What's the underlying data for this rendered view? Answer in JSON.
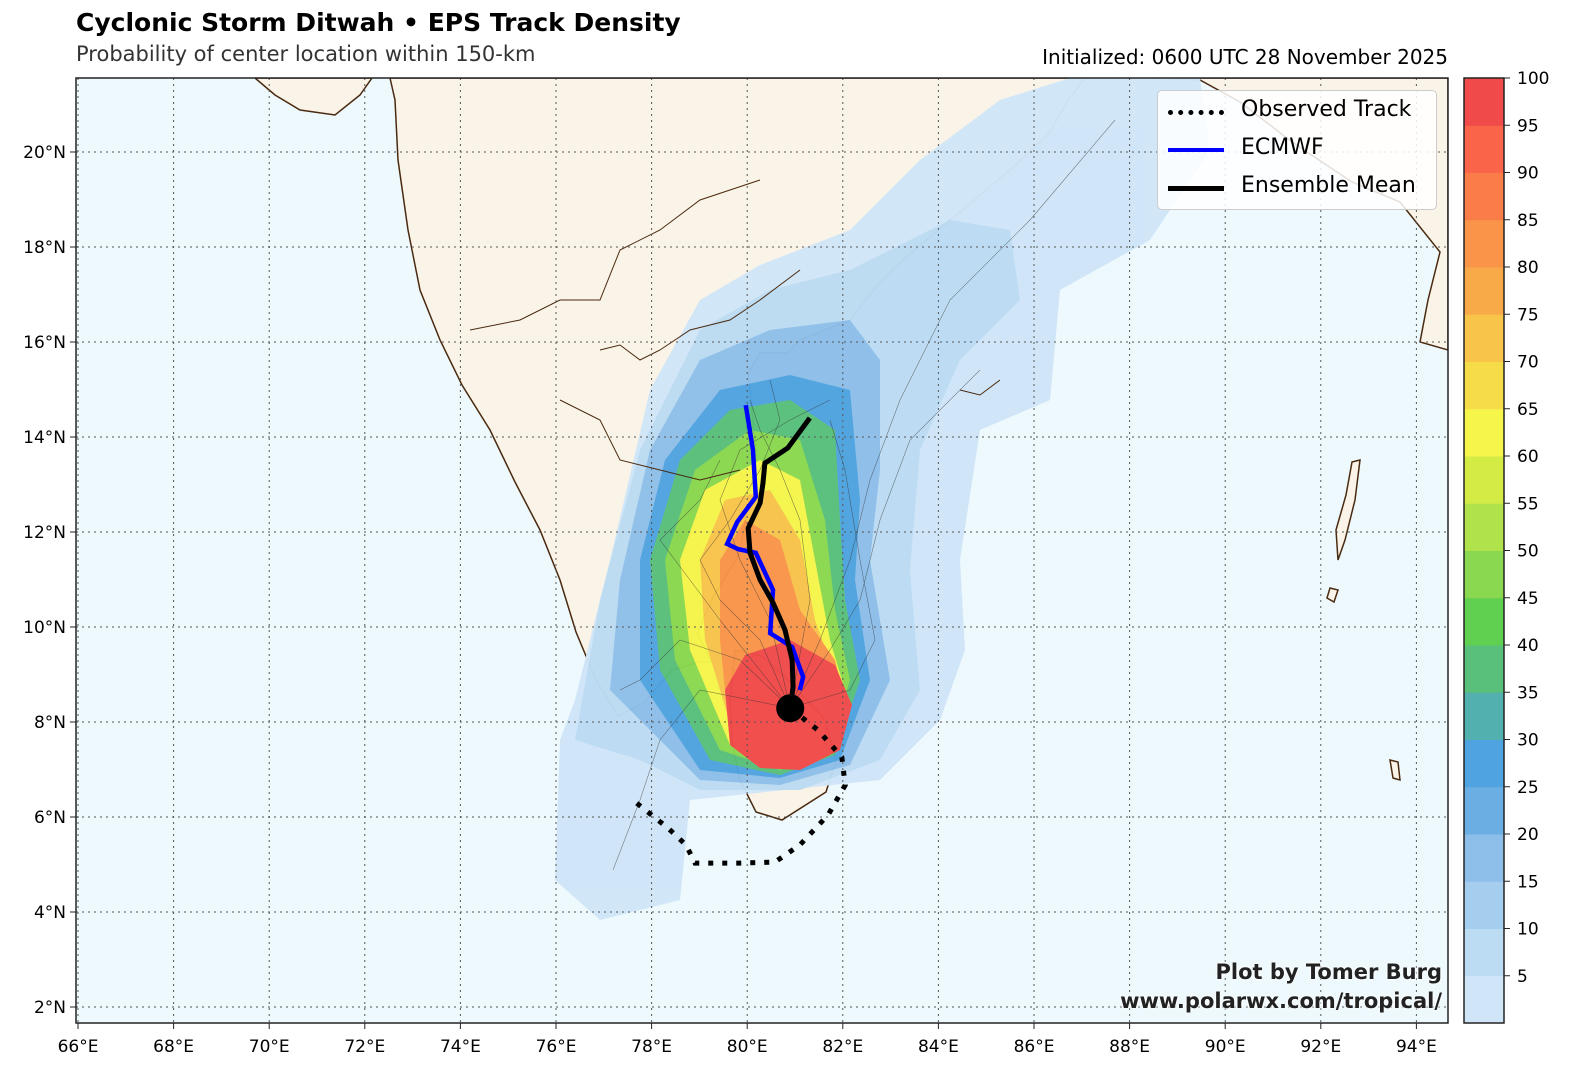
{
  "header": {
    "title": "Cyclonic Storm Ditwah • EPS Track Density",
    "subtitle": "Probability of center location within 150-km",
    "initialized": "Initialized: 0600 UTC 28 November 2025"
  },
  "legend": {
    "items": [
      {
        "label": "Observed Track",
        "style": "dotted",
        "color": "#000000"
      },
      {
        "label": "ECMWF",
        "style": "solid",
        "color": "#0000ff"
      },
      {
        "label": "Ensemble Mean",
        "style": "solid",
        "color": "#000000"
      }
    ]
  },
  "credits": {
    "line1": "Plot by Tomer Burg",
    "line2": "www.polarwx.com/tropical/"
  },
  "chart_data": {
    "type": "map-density",
    "lon_range": [
      66,
      94.6
    ],
    "lat_range": [
      1.7,
      21.6
    ],
    "lon_ticks": [
      "66°E",
      "68°E",
      "70°E",
      "72°E",
      "74°E",
      "76°E",
      "78°E",
      "80°E",
      "82°E",
      "84°E",
      "86°E",
      "88°E",
      "90°E",
      "92°E",
      "94°E"
    ],
    "lon_values": [
      66,
      68,
      70,
      72,
      74,
      76,
      78,
      80,
      82,
      84,
      86,
      88,
      90,
      92,
      94
    ],
    "lat_ticks": [
      "2°N",
      "4°N",
      "6°N",
      "8°N",
      "10°N",
      "12°N",
      "14°N",
      "16°N",
      "18°N",
      "20°N"
    ],
    "lat_values": [
      2,
      4,
      6,
      8,
      10,
      12,
      14,
      16,
      18,
      20
    ],
    "colorbar": {
      "ticks": [
        "5",
        "10",
        "15",
        "20",
        "25",
        "30",
        "35",
        "40",
        "45",
        "50",
        "55",
        "60",
        "65",
        "70",
        "75",
        "80",
        "85",
        "90",
        "95",
        "100"
      ],
      "colors": [
        "#d0e6f8",
        "#bcdcf3",
        "#a5cdee",
        "#8ebfea",
        "#6aaee4",
        "#4fa3e0",
        "#52b0ae",
        "#58c07a",
        "#60d050",
        "#8ad84f",
        "#b0e24c",
        "#d4eb46",
        "#f5f54a",
        "#f7dc4a",
        "#f8c44a",
        "#f9aa48",
        "#f99448",
        "#fa7c48",
        "#fa6448",
        "#f04a4a"
      ]
    },
    "observed_track": [
      [
        77.69,
        6.29
      ],
      [
        78.34,
        5.77
      ],
      [
        78.72,
        5.41
      ],
      [
        78.91,
        5.03
      ],
      [
        79.85,
        5.03
      ],
      [
        80.58,
        5.05
      ],
      [
        81.1,
        5.41
      ],
      [
        81.69,
        6.04
      ],
      [
        82.05,
        6.67
      ],
      [
        81.98,
        7.26
      ],
      [
        81.48,
        7.83
      ],
      [
        80.9,
        8.29
      ]
    ],
    "ecmwf_track": [
      [
        79.97,
        14.67
      ],
      [
        80.12,
        13.73
      ],
      [
        80.18,
        12.74
      ],
      [
        79.79,
        12.21
      ],
      [
        79.58,
        11.75
      ],
      [
        79.81,
        11.64
      ],
      [
        80.18,
        11.56
      ],
      [
        80.54,
        10.78
      ],
      [
        80.48,
        9.87
      ],
      [
        80.94,
        9.58
      ],
      [
        81.17,
        8.95
      ],
      [
        81.1,
        8.67
      ]
    ],
    "ensemble_mean_track": [
      [
        81.31,
        14.4
      ],
      [
        80.85,
        13.77
      ],
      [
        80.37,
        13.45
      ],
      [
        80.33,
        13.03
      ],
      [
        80.27,
        12.61
      ],
      [
        80.02,
        12.08
      ],
      [
        80.06,
        11.56
      ],
      [
        80.27,
        10.99
      ],
      [
        80.54,
        10.51
      ],
      [
        80.79,
        9.94
      ],
      [
        80.94,
        9.31
      ],
      [
        80.96,
        8.74
      ],
      [
        80.9,
        8.29
      ]
    ],
    "current_position": [
      80.9,
      8.29
    ]
  }
}
